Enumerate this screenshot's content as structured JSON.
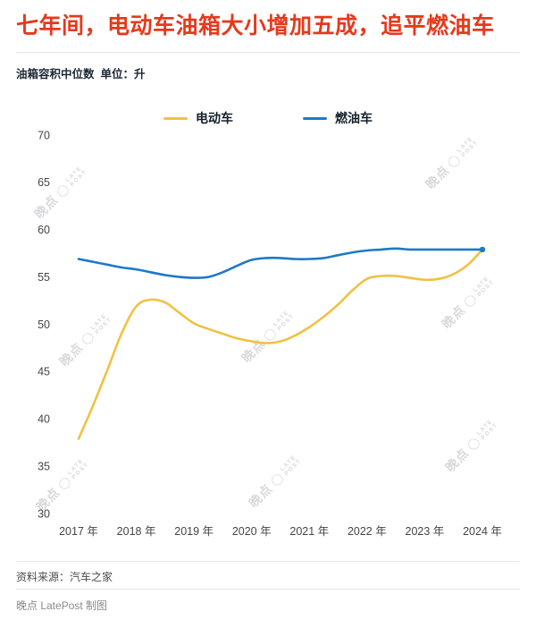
{
  "header": {
    "title": "七年间，电动车油箱大小增加五成，追平燃油车",
    "title_color": "#e6391c",
    "subtitle": "油箱容积中位数  单位：升"
  },
  "legend": [
    {
      "label": "电动车",
      "color": "#f1c143"
    },
    {
      "label": "燃油车",
      "color": "#1f78c8"
    }
  ],
  "watermark": {
    "cn": "晚点",
    "circle": "◯",
    "en_top": "LATE",
    "en_bottom": "POST"
  },
  "footer": {
    "source": "资料来源：汽车之家",
    "credit": "晚点 LatePost 制图"
  },
  "chart_data": {
    "type": "line",
    "title": "七年间，电动车油箱大小增加五成，追平燃油车",
    "subtitle": "油箱容积中位数 单位：升",
    "ylabel": "升",
    "grid": false,
    "legend_position": "top",
    "xlim": [
      2017,
      2024
    ],
    "ylim": [
      30,
      70
    ],
    "y_ticks": [
      30,
      35,
      40,
      45,
      50,
      55,
      60,
      65,
      70
    ],
    "x_tick_labels": [
      "2017 年",
      "2018 年",
      "2019 年",
      "2020 年",
      "2021 年",
      "2022 年",
      "2023 年",
      "2024 年"
    ],
    "x": [
      2017,
      2017.25,
      2017.5,
      2017.75,
      2018,
      2018.25,
      2018.5,
      2018.75,
      2019,
      2019.25,
      2019.5,
      2019.75,
      2020,
      2020.25,
      2020.5,
      2020.75,
      2021,
      2021.25,
      2021.5,
      2021.75,
      2022,
      2022.25,
      2022.5,
      2022.75,
      2023,
      2023.25,
      2023.5,
      2023.75,
      2024
    ],
    "series": [
      {
        "name": "电动车",
        "color": "#f1c143",
        "end_marker": false,
        "values": [
          38.0,
          41.5,
          45.3,
          49.2,
          52.0,
          52.7,
          52.4,
          51.3,
          50.2,
          49.6,
          49.1,
          48.6,
          48.3,
          48.1,
          48.3,
          48.9,
          49.8,
          50.9,
          52.2,
          53.7,
          54.9,
          55.2,
          55.2,
          55.0,
          54.8,
          54.9,
          55.4,
          56.4,
          58.0
        ]
      },
      {
        "name": "燃油车",
        "color": "#1f78c8",
        "end_marker": true,
        "values": [
          57.0,
          56.7,
          56.4,
          56.1,
          55.9,
          55.6,
          55.3,
          55.1,
          55.0,
          55.1,
          55.6,
          56.3,
          56.9,
          57.1,
          57.1,
          57.0,
          57.0,
          57.1,
          57.4,
          57.7,
          57.9,
          58.0,
          58.1,
          58.0,
          58.0,
          58.0,
          58.0,
          58.0,
          58.0
        ]
      }
    ]
  }
}
